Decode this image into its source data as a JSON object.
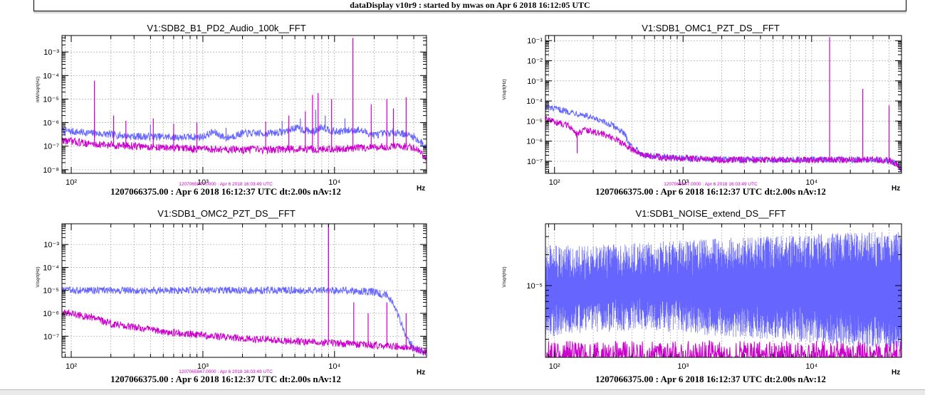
{
  "window": {
    "title": "dataDisplay v10r9 : started by mwas on Apr  6 2018 16:12:05 UTC"
  },
  "colors": {
    "blue": "#6666ff",
    "magenta": "#cc00cc",
    "grid": "#b0b0b0"
  },
  "chart_data": [
    {
      "type": "line",
      "title": "V1:SDB2_B1_PD2_Audio_100k__FFT",
      "ylabel": "mW/sqrt(Hz)",
      "xlabel": "Hz",
      "xscale": "log",
      "yscale": "log",
      "xlim": [
        85,
        50000
      ],
      "ylim": [
        7e-09,
        0.005
      ],
      "ytick_exps": [
        -8,
        -7,
        -6,
        -5,
        -4,
        -3
      ],
      "xtick_exps": [
        2,
        3,
        4
      ],
      "grid": true,
      "footer": "1207066375.00 : Apr  6 2018 16:12:37 UTC dt:2.00s nAv:12",
      "subfooter": "1207065847.0000 : Apr  6 2018 16:03:49 UTC",
      "series": [
        {
          "color": "#6666ff",
          "x": [
            85,
            150,
            300,
            700,
            1000,
            1200,
            1500,
            2000,
            3000,
            4000,
            5000,
            7000,
            8000,
            10000,
            15000,
            20000,
            30000,
            40000,
            50000
          ],
          "y": [
            4.5e-07,
            3.5e-07,
            2.6e-07,
            2.4e-07,
            2.5e-07,
            4e-07,
            2.2e-07,
            3.5e-07,
            3.5e-07,
            4e-07,
            6e-07,
            4e-07,
            7e-07,
            4e-07,
            5e-07,
            3e-07,
            4e-07,
            2.5e-07,
            9e-08
          ],
          "spikes": [
            [
              150,
              3e-06
            ],
            [
              400,
              8e-07
            ],
            [
              1500,
              6e-07
            ],
            [
              4000,
              1.2e-06
            ],
            [
              5500,
              1.5e-06
            ],
            [
              7200,
              3.5e-06
            ],
            [
              8500,
              2e-06
            ],
            [
              12000,
              1.5e-06
            ],
            [
              25000,
              1e-06
            ]
          ]
        },
        {
          "color": "#cc00cc",
          "x": [
            85,
            150,
            300,
            700,
            1000,
            2000,
            3000,
            5000,
            10000,
            20000,
            30000,
            40000,
            50000
          ],
          "y": [
            1.8e-07,
            1.2e-07,
            1e-07,
            8e-08,
            7.5e-08,
            7e-08,
            7e-08,
            7.5e-08,
            7.5e-08,
            9e-08,
            1e-07,
            9e-08,
            3e-08
          ],
          "spikes": [
            [
              150,
              6e-05
            ],
            [
              210,
              2e-06
            ],
            [
              260,
              1.2e-06
            ],
            [
              420,
              1.5e-06
            ],
            [
              600,
              9e-07
            ],
            [
              900,
              1e-06
            ],
            [
              3000,
              1.1e-06
            ],
            [
              4500,
              2e-06
            ],
            [
              6000,
              3e-06
            ],
            [
              6800,
              1.5e-05
            ],
            [
              7500,
              1.8e-05
            ],
            [
              9500,
              1e-05
            ],
            [
              13800,
              0.004
            ],
            [
              19000,
              6e-06
            ],
            [
              25000,
              1e-05
            ],
            [
              28000,
              4e-06
            ],
            [
              35000,
              1.2e-05
            ]
          ]
        }
      ]
    },
    {
      "type": "line",
      "title": "V1:SDB1_OMC1_PZT_DS__FFT",
      "ylabel": "V/sqrt(Hz)",
      "xlabel": "Hz",
      "xscale": "log",
      "yscale": "log",
      "xlim": [
        85,
        50000
      ],
      "ylim": [
        2.5e-08,
        0.18
      ],
      "ytick_exps": [
        -7,
        -6,
        -5,
        -4,
        -3,
        -2,
        -1
      ],
      "xtick_exps": [
        2,
        3,
        4
      ],
      "grid": true,
      "footer": "1207066375.00 : Apr  6 2018 16:12:37 UTC dt:2.00s nAv:12",
      "subfooter": "1207065847.0000 : Apr  6 2018 16:03:49 UTC",
      "series": [
        {
          "color": "#6666ff",
          "x": [
            85,
            100,
            130,
            170,
            200,
            250,
            300,
            350,
            400,
            500,
            700,
            1000,
            2000,
            5000,
            10000,
            20000,
            30000,
            40000,
            45000,
            50000
          ],
          "y": [
            5e-05,
            4e-05,
            3e-05,
            2e-05,
            1.3e-05,
            8e-06,
            5e-06,
            2.2e-06,
            5e-07,
            2e-07,
            1.6e-07,
            1.4e-07,
            1.2e-07,
            1.2e-07,
            1.2e-07,
            1.2e-07,
            1.2e-07,
            1.1e-07,
            8e-08,
            4e-08
          ],
          "spikes": []
        },
        {
          "color": "#cc00cc",
          "x": [
            85,
            100,
            130,
            150,
            170,
            200,
            250,
            300,
            400,
            500,
            700,
            1000,
            2000,
            5000,
            10000,
            20000,
            30000,
            40000,
            45000,
            50000
          ],
          "y": [
            1.2e-05,
            9e-06,
            6e-06,
            2e-06,
            4e-06,
            3e-06,
            2e-06,
            1.2e-06,
            4e-07,
            2e-07,
            1.5e-07,
            1.4e-07,
            1.2e-07,
            1.2e-07,
            1.2e-07,
            1.2e-07,
            1.2e-07,
            1.1e-07,
            8e-08,
            4e-08
          ],
          "spikes": [
            [
              150,
              2.5e-07
            ],
            [
              13800,
              0.15
            ],
            [
              25000,
              0.0004
            ],
            [
              40000,
              6e-05
            ]
          ]
        }
      ]
    },
    {
      "type": "line",
      "title": "V1:SDB1_OMC2_PZT_DS__FFT",
      "ylabel": "V/sqrt(Hz)",
      "xlabel": "Hz",
      "xscale": "log",
      "yscale": "log",
      "xlim": [
        85,
        50000
      ],
      "ylim": [
        1.2e-08,
        0.008
      ],
      "ytick_exps": [
        -7,
        -6,
        -5,
        -4,
        -3
      ],
      "xtick_exps": [
        2,
        3,
        4
      ],
      "grid": true,
      "footer": "1207066375.00 : Apr  6 2018 16:12:37 UTC dt:2.00s nAv:12",
      "subfooter": "1207065847.0000 : Apr  6 2018 16:03:49 UTC",
      "series": [
        {
          "color": "#6666ff",
          "x": [
            85,
            200,
            500,
            1000,
            2000,
            5000,
            10000,
            15000,
            20000,
            25000,
            28000,
            30000,
            35000,
            40000,
            50000
          ],
          "y": [
            1e-05,
            1e-05,
            1e-05,
            1e-05,
            1e-05,
            1e-05,
            1e-05,
            9.5e-06,
            8.5e-06,
            6e-06,
            3e-06,
            1e-06,
            1e-07,
            3e-08,
            2e-08
          ],
          "spikes": [
            [
              9000,
              0.008
            ]
          ]
        },
        {
          "color": "#cc00cc",
          "x": [
            85,
            100,
            150,
            200,
            300,
            500,
            1000,
            2000,
            5000,
            10000,
            20000,
            30000,
            40000,
            50000
          ],
          "y": [
            1.2e-06,
            1e-06,
            6e-07,
            3.5e-07,
            2.5e-07,
            1.6e-07,
            1.1e-07,
            8e-08,
            6e-08,
            5e-08,
            4e-08,
            3.5e-08,
            3e-08,
            2e-08
          ],
          "spikes": [
            [
              150,
              5e-07
            ],
            [
              9000,
              0.008
            ],
            [
              14000,
              3e-06
            ],
            [
              18000,
              1e-06
            ],
            [
              25000,
              3e-06
            ],
            [
              35000,
              1e-06
            ]
          ]
        }
      ]
    },
    {
      "type": "line",
      "title": "V1:SDB1_NOISE_extend_DS__FFT",
      "ylabel": "V/sqrt(Hz)",
      "xlabel": "Hz",
      "xscale": "log",
      "yscale": "log",
      "xlim": [
        85,
        50000
      ],
      "ylim": [
        2e-06,
        4e-05
      ],
      "ytick_exps": [
        -5
      ],
      "xtick_exps": [
        2,
        3,
        4
      ],
      "grid": true,
      "footer": "1207066375.00 : Apr  6 2018 16:12:37 UTC dt:2.00s nAv:12",
      "series": [
        {
          "color": "#6666ff",
          "band": true,
          "x": [
            85,
            200,
            500,
            1000,
            2000,
            5000,
            10000,
            20000,
            50000
          ],
          "y_low": [
            4e-06,
            4.5e-06,
            4.5e-06,
            4.5e-06,
            4e-06,
            3.8e-06,
            3.5e-06,
            3.2e-06,
            3e-06
          ],
          "y_high": [
            1.8e-05,
            1.8e-05,
            1.9e-05,
            2e-05,
            2.1e-05,
            2.2e-05,
            2.3e-05,
            2.4e-05,
            2.5e-05
          ]
        },
        {
          "color": "#cc00cc",
          "x": [
            85,
            50000
          ],
          "y": [
            2e-06,
            2e-06
          ],
          "spikes": []
        }
      ]
    }
  ]
}
